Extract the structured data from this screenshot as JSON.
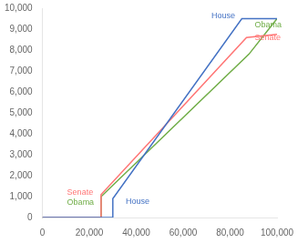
{
  "chart_data": {
    "type": "line",
    "series": [
      {
        "name": "House",
        "color": "#4472C4",
        "x": [
          0,
          30000,
          30000,
          85000,
          100000
        ],
        "values": [
          0,
          0,
          900,
          9500,
          9500
        ]
      },
      {
        "name": "Senate",
        "color": "#FF7575",
        "x": [
          0,
          25000,
          25000,
          87000,
          100000
        ],
        "values": [
          0,
          0,
          1100,
          8600,
          8750
        ]
      },
      {
        "name": "Obama",
        "color": "#70AD47",
        "x": [
          0,
          25000,
          25000,
          88000,
          100000
        ],
        "values": [
          0,
          0,
          1000,
          7800,
          9500
        ]
      }
    ],
    "xlim": [
      0,
      100000
    ],
    "ylim": [
      0,
      10000
    ],
    "xticks": [
      0,
      {
        "value": 20000,
        "label": "20,000"
      },
      {
        "value": 40000,
        "label": "40,000"
      },
      {
        "value": 60000,
        "label": "60,000"
      },
      {
        "value": 80000,
        "label": "80,000"
      },
      {
        "value": 100000,
        "label": "100,000"
      }
    ],
    "yticks": [
      0,
      {
        "value": 1000,
        "label": "1,000"
      },
      {
        "value": 2000,
        "label": "2,000"
      },
      {
        "value": 3000,
        "label": "3,000"
      },
      {
        "value": 4000,
        "label": "4,000"
      },
      {
        "value": 5000,
        "label": "5,000"
      },
      {
        "value": 6000,
        "label": "6,000"
      },
      {
        "value": 7000,
        "label": "7,000"
      },
      {
        "value": 8000,
        "label": "8,000"
      },
      {
        "value": 9000,
        "label": "9,000"
      },
      {
        "value": 10000,
        "label": "10,000"
      }
    ],
    "grid": false,
    "annotations": [
      {
        "text": "Senate",
        "x": 10500,
        "y": 1200,
        "color": "#FF7575"
      },
      {
        "text": "Obama",
        "x": 10500,
        "y": 700,
        "color": "#70AD47"
      },
      {
        "text": "House",
        "x": 35500,
        "y": 750,
        "color": "#4472C4"
      },
      {
        "text": "House",
        "x": 72000,
        "y": 9650,
        "color": "#4472C4"
      },
      {
        "text": "Senate",
        "x": 90500,
        "y": 8600,
        "color": "#FF7575"
      },
      {
        "text": "Obama",
        "x": 90500,
        "y": 9200,
        "color": "#70AD47"
      }
    ]
  }
}
